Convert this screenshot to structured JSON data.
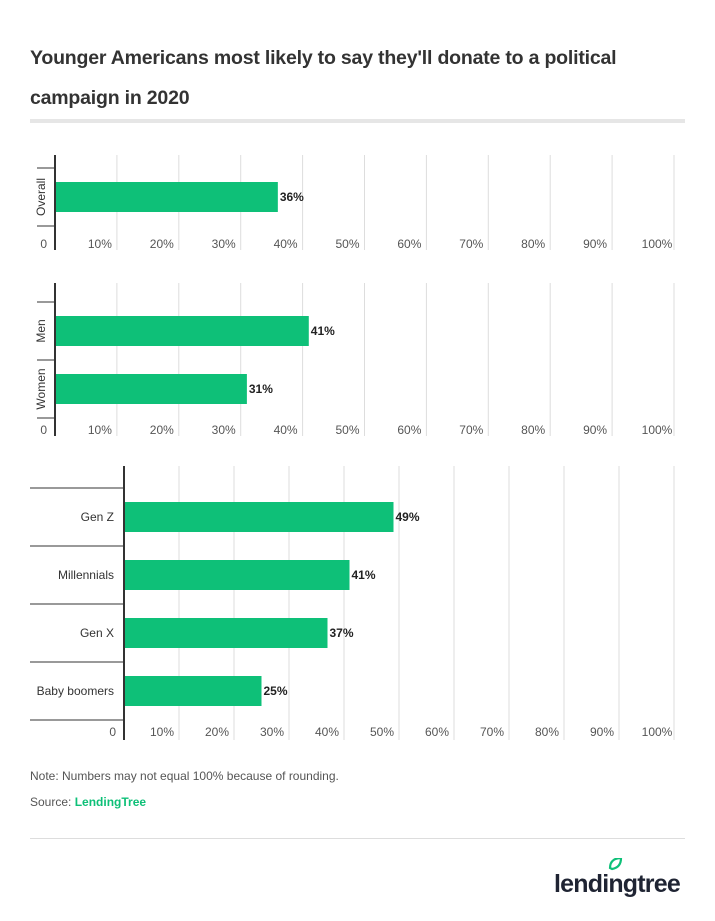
{
  "title": "Younger Americans most likely to say they'll donate to a political campaign in 2020",
  "note": "Note: Numbers may not equal 100% because of rounding.",
  "source_label": "Source:",
  "source_link": "LendingTree",
  "logo_text": "lendingtree",
  "colors": {
    "bar": "#0ec078",
    "grid": "#dddddd",
    "axis": "#333333"
  },
  "chart_data": [
    {
      "type": "bar",
      "orientation": "horizontal",
      "categories": [
        "Overall"
      ],
      "values": [
        36
      ],
      "data_labels": [
        "36%"
      ],
      "xlim": [
        0,
        100
      ],
      "ticks": [
        "0",
        "10%",
        "20%",
        "30%",
        "40%",
        "50%",
        "60%",
        "70%",
        "80%",
        "90%",
        "100%"
      ],
      "grid": true,
      "category_label_orientation": "vertical"
    },
    {
      "type": "bar",
      "orientation": "horizontal",
      "categories": [
        "Men",
        "Women"
      ],
      "values": [
        41,
        31
      ],
      "data_labels": [
        "41%",
        "31%"
      ],
      "xlim": [
        0,
        100
      ],
      "ticks": [
        "0",
        "10%",
        "20%",
        "30%",
        "40%",
        "50%",
        "60%",
        "70%",
        "80%",
        "90%",
        "100%"
      ],
      "grid": true,
      "category_label_orientation": "vertical"
    },
    {
      "type": "bar",
      "orientation": "horizontal",
      "categories": [
        "Gen Z",
        "Millennials",
        "Gen X",
        "Baby boomers"
      ],
      "values": [
        49,
        41,
        37,
        25
      ],
      "data_labels": [
        "49%",
        "41%",
        "37%",
        "25%"
      ],
      "xlim": [
        0,
        100
      ],
      "ticks": [
        "0",
        "10%",
        "20%",
        "30%",
        "40%",
        "50%",
        "60%",
        "70%",
        "80%",
        "90%",
        "100%"
      ],
      "grid": true,
      "category_label_orientation": "horizontal"
    }
  ]
}
